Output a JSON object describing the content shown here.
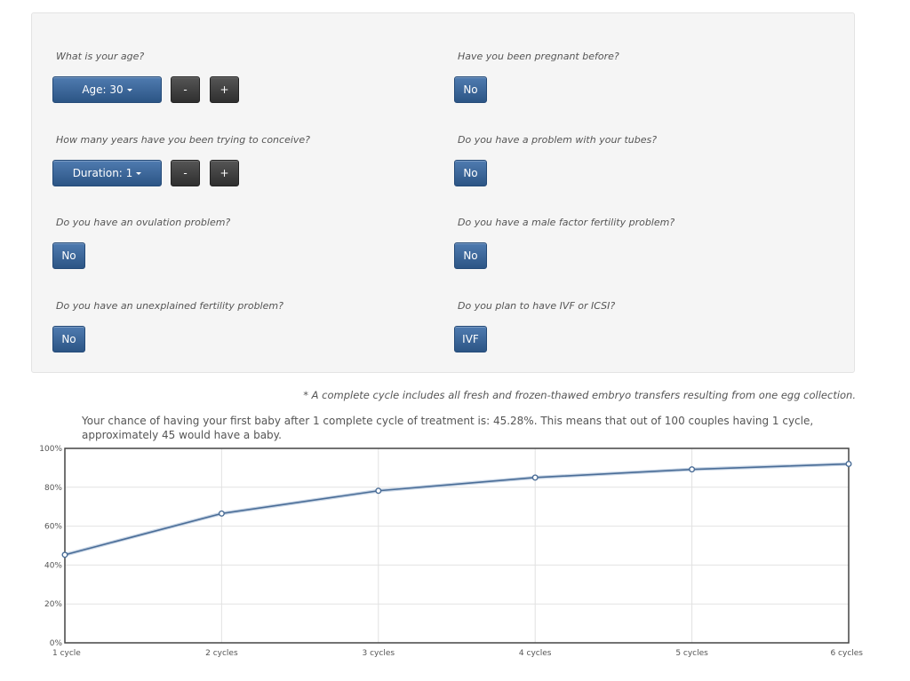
{
  "form": {
    "age": {
      "question": "What is your age?",
      "dropdown_label": "Age: 30",
      "minus": "-",
      "plus": "+"
    },
    "duration": {
      "question": "How many years have you been trying to conceive?",
      "dropdown_label": "Duration: 1",
      "minus": "-",
      "plus": "+"
    },
    "ovulation": {
      "question": "Do you have an ovulation problem?",
      "answer": "No"
    },
    "unexplained": {
      "question": "Do you have an unexplained fertility problem?",
      "answer": "No"
    },
    "pregnant": {
      "question": "Have you been pregnant before?",
      "answer": "No"
    },
    "tubes": {
      "question": "Do you have a problem with your tubes?",
      "answer": "No"
    },
    "male_factor": {
      "question": "Do you have a male factor fertility problem?",
      "answer": "No"
    },
    "treatment": {
      "question": "Do you plan to have IVF or ICSI?",
      "answer": "IVF"
    }
  },
  "footnote": "* A complete cycle includes all fresh and frozen-thawed embryo transfers resulting from one egg collection.",
  "result_text": "Your chance of having your first baby after 1 complete cycle of treatment is: 45.28%. This means that out of 100 couples having 1 cycle, approximately 45 would have a baby.",
  "colors": {
    "button_blue": "#3a6599",
    "button_dark": "#3a3a3a",
    "line": "#4a6d97"
  },
  "chart_data": {
    "type": "line",
    "categories": [
      "1 cycle",
      "2 cycles",
      "3 cycles",
      "4 cycles",
      "5 cycles",
      "6 cycles"
    ],
    "series": [
      {
        "values": [
          45.28,
          66.5,
          78.2,
          85.0,
          89.2,
          92.0
        ]
      }
    ],
    "ytick_labels": [
      "0%",
      "20%",
      "40%",
      "60%",
      "80%",
      "100%"
    ],
    "ylim": [
      0,
      100
    ],
    "grid": true
  }
}
